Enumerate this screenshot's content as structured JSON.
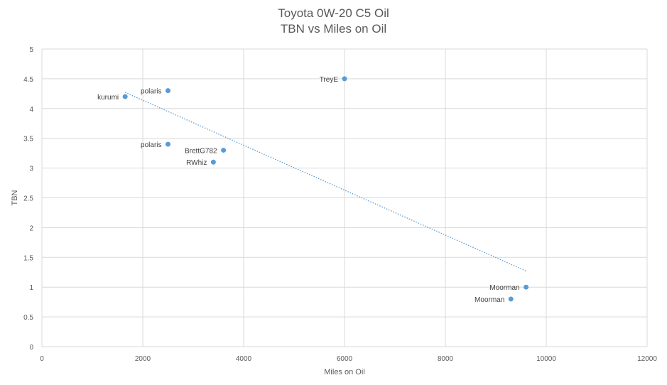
{
  "chart_data": {
    "type": "scatter",
    "title": "Toyota 0W-20 C5 Oil",
    "subtitle": "TBN vs Miles on Oil",
    "xlabel": "Miles on Oil",
    "ylabel": "TBN",
    "xlim": [
      0,
      12000
    ],
    "ylim": [
      0,
      5
    ],
    "xticks": [
      0,
      2000,
      4000,
      6000,
      8000,
      10000,
      12000
    ],
    "yticks": [
      0,
      0.5,
      1,
      1.5,
      2,
      2.5,
      3,
      3.5,
      4,
      4.5,
      5
    ],
    "grid": true,
    "marker_color": "#5b9bd5",
    "trendline": {
      "type": "linear",
      "style": "dotted",
      "color": "#5b9bd5"
    },
    "points": [
      {
        "x": 1650,
        "y": 4.2,
        "label": "kurumi"
      },
      {
        "x": 2500,
        "y": 4.3,
        "label": "polaris"
      },
      {
        "x": 2500,
        "y": 3.4,
        "label": "polaris"
      },
      {
        "x": 3600,
        "y": 3.3,
        "label": "BrettG782"
      },
      {
        "x": 3400,
        "y": 3.1,
        "label": "RWhiz"
      },
      {
        "x": 6000,
        "y": 4.5,
        "label": "TreyE"
      },
      {
        "x": 9600,
        "y": 1.0,
        "label": "Moorman"
      },
      {
        "x": 9300,
        "y": 0.8,
        "label": "Moorman"
      }
    ]
  }
}
